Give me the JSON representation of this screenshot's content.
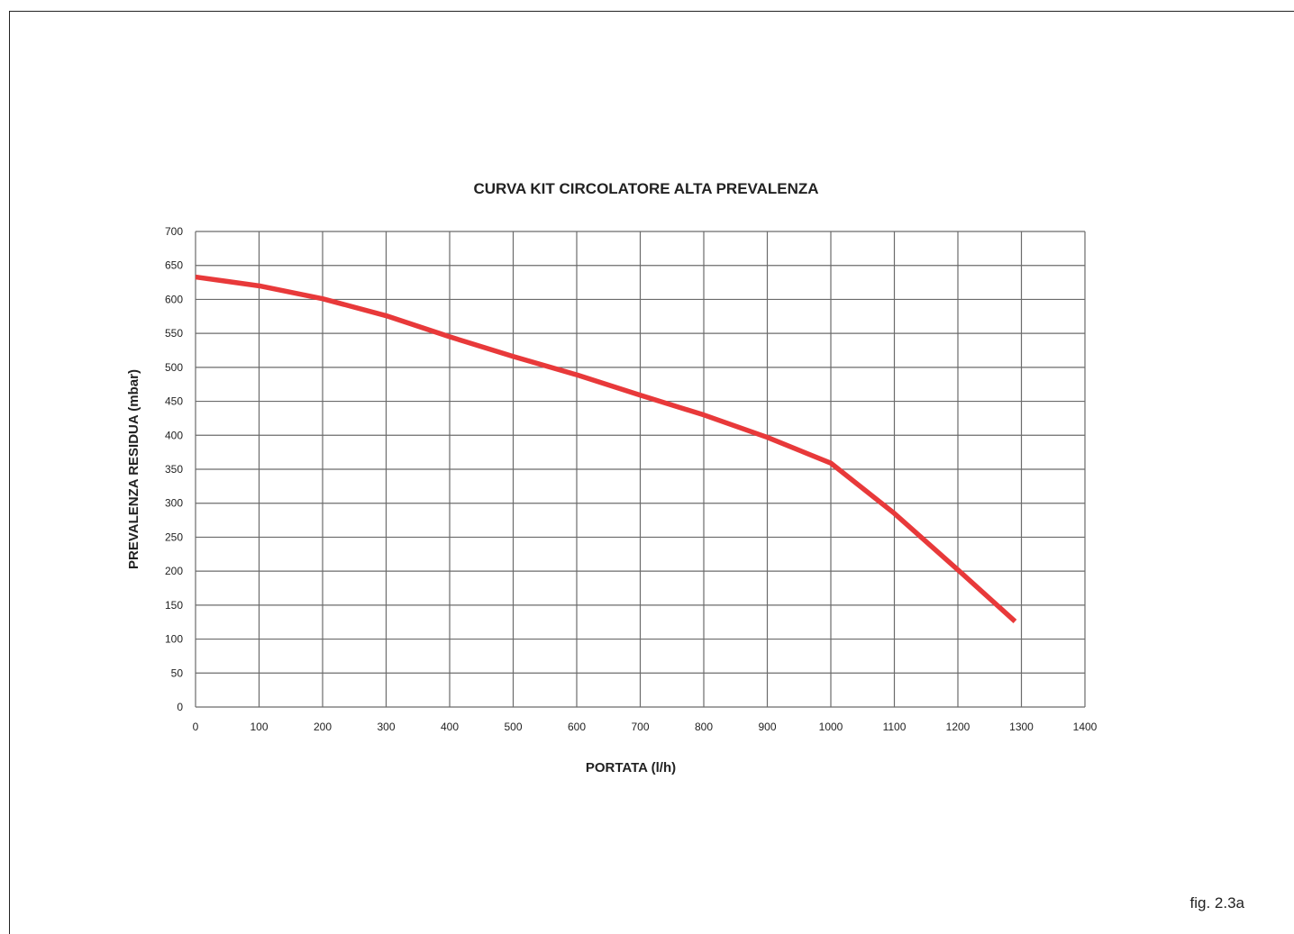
{
  "figure_label": "fig. 2.3a",
  "chart_data": {
    "type": "line",
    "title": "CURVA KIT CIRCOLATORE ALTA PREVALENZA",
    "xlabel": "PORTATA (l/h)",
    "ylabel": "PREVALENZA RESIDUA (mbar)",
    "xlim": [
      0,
      1400
    ],
    "ylim": [
      0,
      700
    ],
    "xticks": [
      0,
      100,
      200,
      300,
      400,
      500,
      600,
      700,
      800,
      900,
      1000,
      1100,
      1200,
      1300,
      1400
    ],
    "yticks": [
      0,
      50,
      100,
      150,
      200,
      250,
      300,
      350,
      400,
      450,
      500,
      550,
      600,
      650,
      700
    ],
    "grid": true,
    "series": [
      {
        "color": "#e8393a",
        "x": [
          0,
          100,
          200,
          300,
          400,
          500,
          600,
          700,
          800,
          900,
          1000,
          1100,
          1200,
          1290
        ],
        "y": [
          633,
          620,
          601,
          576,
          545,
          516,
          489,
          459,
          430,
          397,
          359,
          285,
          202,
          126
        ]
      }
    ]
  }
}
